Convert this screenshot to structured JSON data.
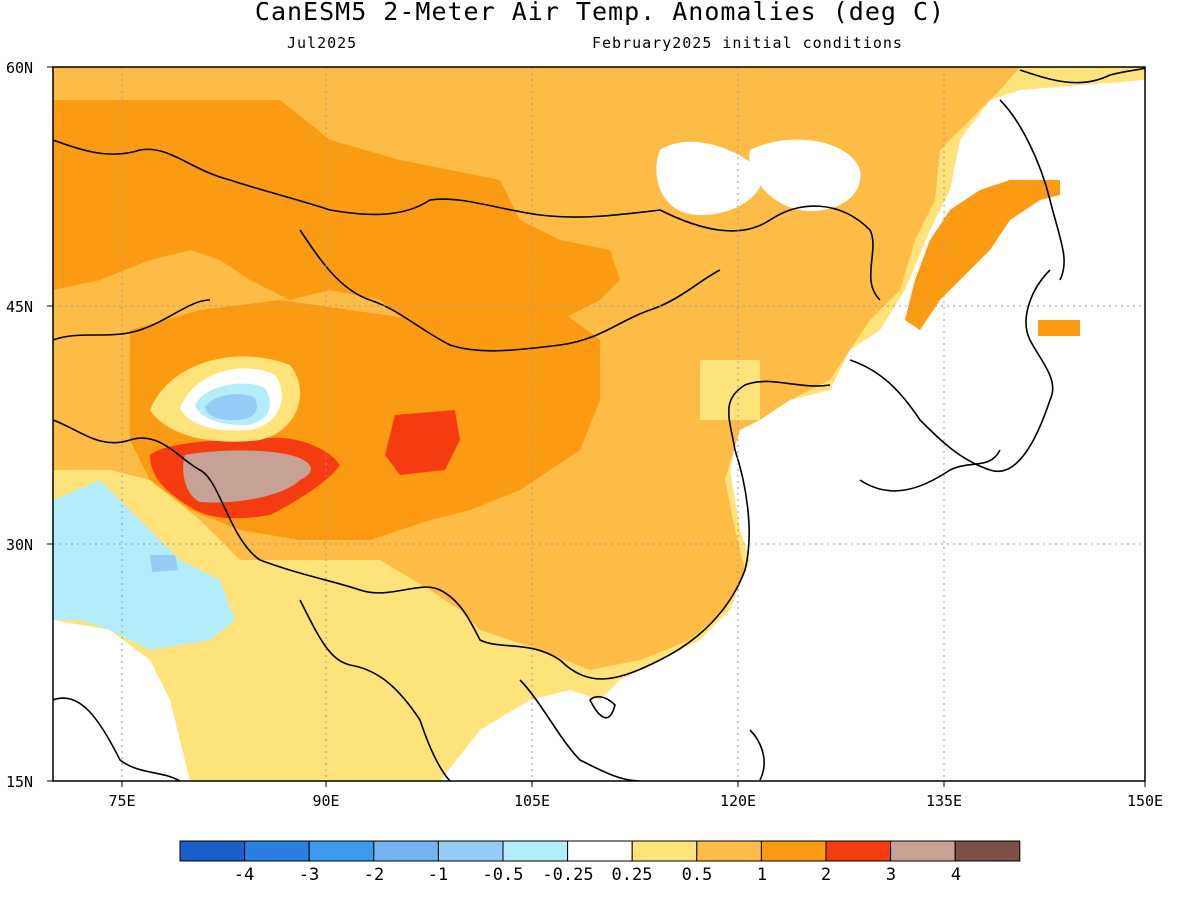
{
  "header": {
    "title": "CanESM5 2-Meter Air Temp. Anomalies (deg C)",
    "left_subtitle": "Jul2025",
    "right_subtitle": "February2025 initial conditions"
  },
  "map": {
    "lat_labels": [
      "60N",
      "45N",
      "30N",
      "15N"
    ],
    "lon_labels": [
      "75E",
      "90E",
      "105E",
      "120E",
      "135E",
      "150E"
    ],
    "extent": {
      "lon": [
        70,
        150
      ],
      "lat": [
        15,
        60
      ]
    },
    "gridlines": "dotted"
  },
  "colorbar": {
    "labels": [
      "-4",
      "-3",
      "-2",
      "-1",
      "-0.5",
      "-0.25",
      "0.25",
      "0.5",
      "1",
      "2",
      "3",
      "4"
    ],
    "colors": [
      "#1a5fc7",
      "#2a7fe0",
      "#3c9aee",
      "#71b4f1",
      "#94cbf7",
      "#b3ecfa",
      "#ffffff",
      "#fde37a",
      "#fcbc45",
      "#fa9b13",
      "#f43c10",
      "#c6a295",
      "#7a5047"
    ]
  },
  "palette": {
    "coast": "#000000",
    "ocean": "#ffffff",
    "weak_warm": "#fde37a",
    "mod_warm": "#fcbc45",
    "strong_warm": "#fa9b13",
    "hot": "#f43c10",
    "extreme": "#c6a295",
    "weak_cool": "#b3ecfa",
    "cool": "#94cbf7"
  }
}
